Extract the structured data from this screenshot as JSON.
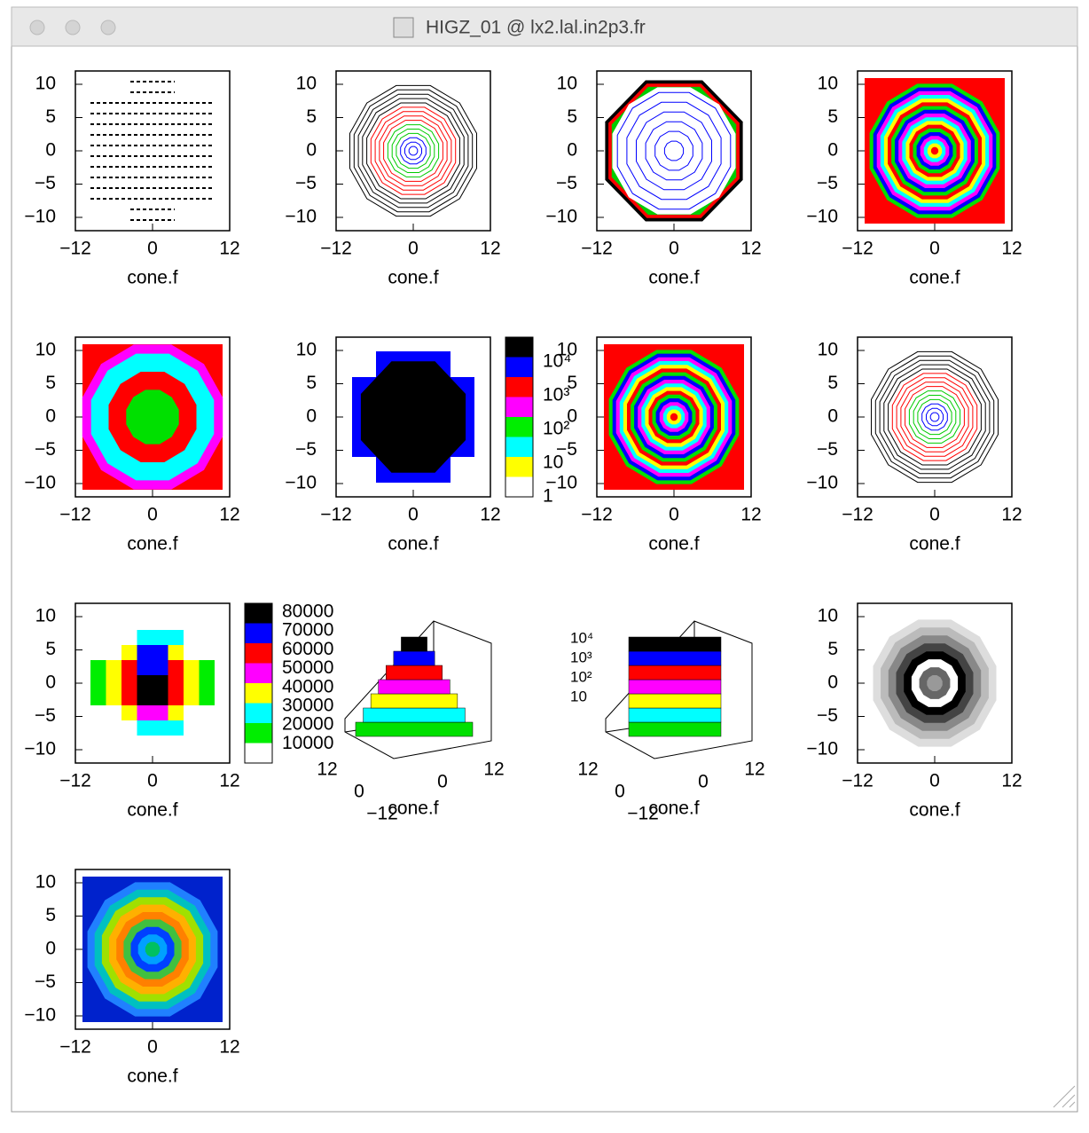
{
  "window": {
    "title": "HIGZ_01 @ lx2.lal.in2p3.fr"
  },
  "axes": {
    "x_label": "cone.f",
    "xlim": [
      -12,
      12
    ],
    "ylim": [
      -12,
      12
    ],
    "xticks": [
      {
        "value": -12,
        "label": "−12"
      },
      0,
      12
    ],
    "yticks": [
      10,
      5,
      0,
      {
        "value": -5,
        "label": "−5"
      },
      {
        "value": -10,
        "label": "−10"
      }
    ]
  },
  "panels": [
    {
      "style": "box"
    },
    {
      "style": "contour"
    },
    {
      "style": "contour-wide"
    },
    {
      "style": "filled"
    },
    {
      "style": "colz"
    },
    {
      "style": "blocks-log"
    },
    {
      "style": "filled"
    },
    {
      "style": "contour"
    },
    {
      "style": "blocks"
    },
    {
      "style": "lego"
    },
    {
      "style": "surface"
    },
    {
      "style": "gray"
    },
    {
      "style": "rainbow"
    }
  ],
  "colorbars": {
    "log": [
      "10⁴",
      "10³",
      "10²",
      "10",
      "1"
    ],
    "linear": [
      80000,
      70000,
      60000,
      50000,
      40000,
      30000,
      20000,
      10000
    ]
  }
}
